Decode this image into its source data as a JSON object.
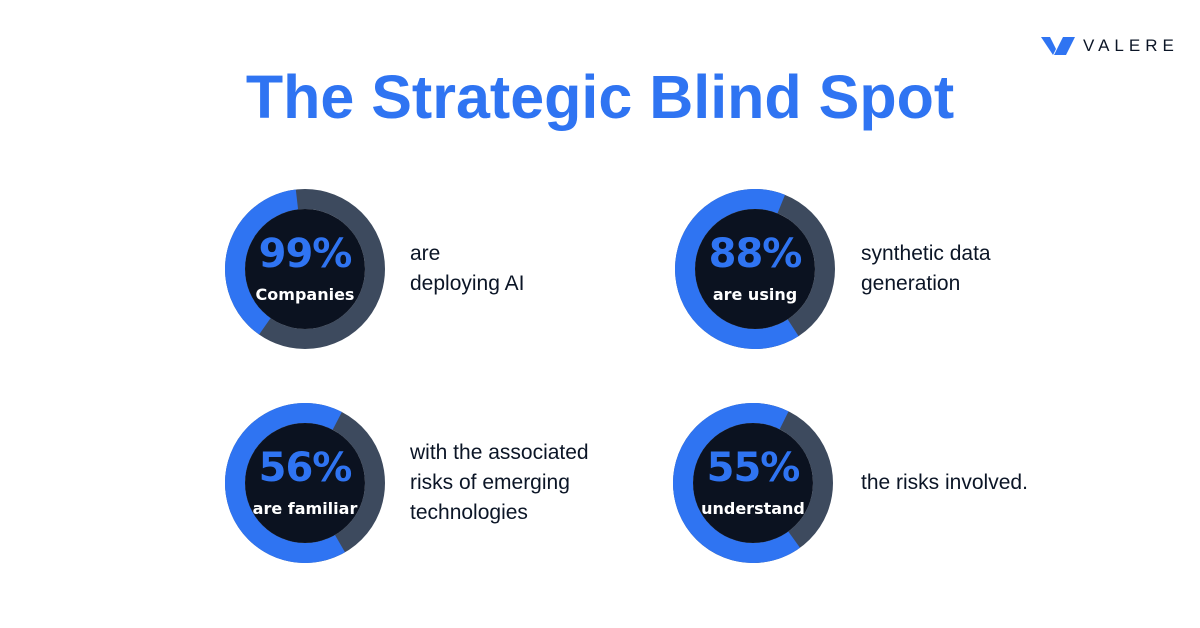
{
  "brand": {
    "name": "VALERE"
  },
  "title": "The Strategic Blind Spot",
  "colors": {
    "accent": "#2f74f2",
    "ring_track": "#3d4a5e",
    "inner": "#0b1220",
    "text": "#0b1526"
  },
  "stats": [
    {
      "percent": "99%",
      "value": 99,
      "label": "Companies",
      "description": [
        "are",
        "deploying AI"
      ]
    },
    {
      "percent": "88%",
      "value": 88,
      "label": "are using",
      "description": [
        "synthetic data",
        "generation"
      ]
    },
    {
      "percent": "56%",
      "value": 56,
      "label": "are familiar",
      "description": [
        "with the associated",
        "risks of emerging",
        "technologies"
      ]
    },
    {
      "percent": "55%",
      "value": 55,
      "label": "understand",
      "description": [
        "the risks involved."
      ]
    }
  ]
}
